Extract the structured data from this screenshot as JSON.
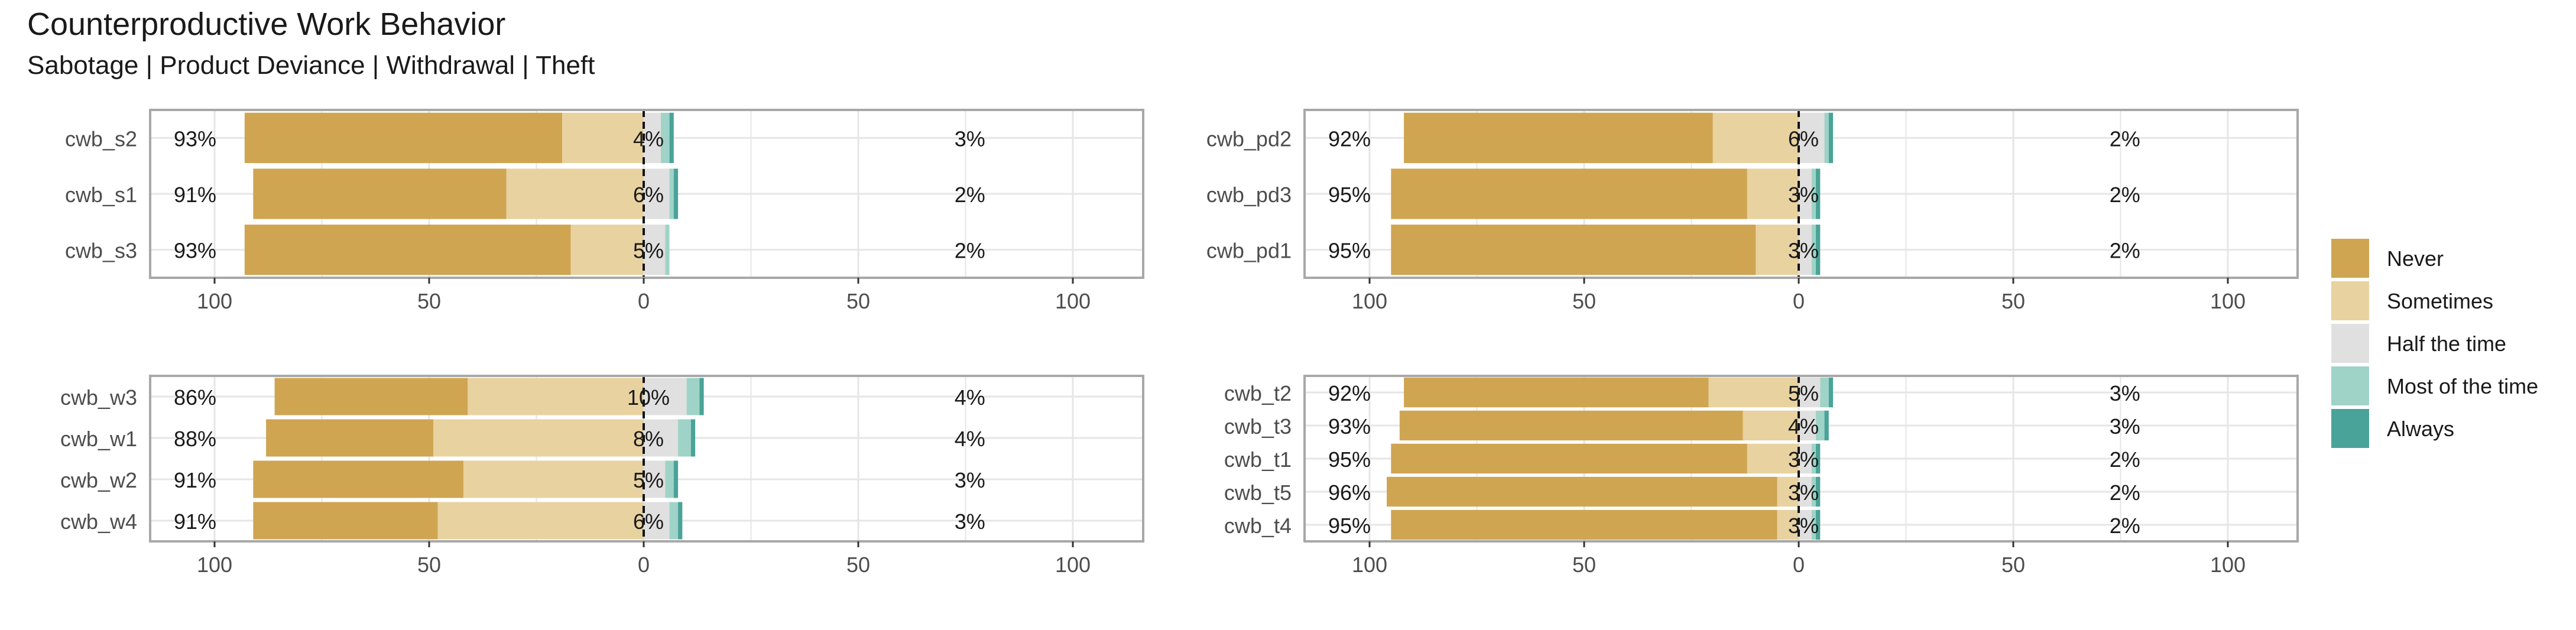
{
  "title": "Counterproductive Work Behavior",
  "subtitle": "Sabotage | Product Deviance | Withdrawal | Theft",
  "colors": {
    "Never": "#cfa552",
    "Sometimes": "#e8d2a0",
    "Half the time": "#e0e0e0",
    "Most of the time": "#9fd3c7",
    "Always": "#4aa398",
    "grid": "#e6e6e6",
    "border": "#a8a8a8",
    "text": "#1a1a1a",
    "axis_text": "#4d4d4d"
  },
  "legend": {
    "position": "right",
    "items": [
      "Never",
      "Sometimes",
      "Half the time",
      "Most of the time",
      "Always"
    ]
  },
  "chart_data": [
    {
      "type": "bar",
      "orientation": "horizontal-diverging",
      "panel": "top-left",
      "categories": [
        "cwb_s2",
        "cwb_s1",
        "cwb_s3"
      ],
      "series": [
        {
          "name": "Never",
          "values": [
            -74,
            -59,
            -76
          ]
        },
        {
          "name": "Sometimes",
          "values": [
            -19,
            -32,
            -17
          ]
        },
        {
          "name": "Half the time",
          "values": [
            4,
            6,
            5
          ]
        },
        {
          "name": "Most of the time",
          "values": [
            2,
            1,
            1
          ]
        },
        {
          "name": "Always",
          "values": [
            1,
            1,
            0
          ]
        }
      ],
      "left_labels": [
        "93%",
        "91%",
        "93%"
      ],
      "center_labels": [
        "4%",
        "6%",
        "5%"
      ],
      "right_labels": [
        "3%",
        "2%",
        "2%"
      ],
      "xticks": [
        "100",
        "50",
        "0",
        "50",
        "100"
      ],
      "xlim": [
        -100,
        100
      ],
      "grid": true
    },
    {
      "type": "bar",
      "orientation": "horizontal-diverging",
      "panel": "top-right",
      "categories": [
        "cwb_pd2",
        "cwb_pd3",
        "cwb_pd1"
      ],
      "series": [
        {
          "name": "Never",
          "values": [
            -72,
            -83,
            -85
          ]
        },
        {
          "name": "Sometimes",
          "values": [
            -20,
            -12,
            -10
          ]
        },
        {
          "name": "Half the time",
          "values": [
            6,
            3,
            3
          ]
        },
        {
          "name": "Most of the time",
          "values": [
            1,
            1,
            1
          ]
        },
        {
          "name": "Always",
          "values": [
            1,
            1,
            1
          ]
        }
      ],
      "left_labels": [
        "92%",
        "95%",
        "95%"
      ],
      "center_labels": [
        "6%",
        "3%",
        "3%"
      ],
      "right_labels": [
        "2%",
        "2%",
        "2%"
      ],
      "xticks": [
        "100",
        "50",
        "0",
        "50",
        "100"
      ],
      "xlim": [
        -100,
        100
      ],
      "grid": true
    },
    {
      "type": "bar",
      "orientation": "horizontal-diverging",
      "panel": "bottom-left",
      "categories": [
        "cwb_w3",
        "cwb_w1",
        "cwb_w2",
        "cwb_w4"
      ],
      "series": [
        {
          "name": "Never",
          "values": [
            -45,
            -39,
            -49,
            -43
          ]
        },
        {
          "name": "Sometimes",
          "values": [
            -41,
            -49,
            -42,
            -48
          ]
        },
        {
          "name": "Half the time",
          "values": [
            10,
            8,
            5,
            6
          ]
        },
        {
          "name": "Most of the time",
          "values": [
            3,
            3,
            2,
            2
          ]
        },
        {
          "name": "Always",
          "values": [
            1,
            1,
            1,
            1
          ]
        }
      ],
      "left_labels": [
        "86%",
        "88%",
        "91%",
        "91%"
      ],
      "center_labels": [
        "10%",
        "8%",
        "5%",
        "6%"
      ],
      "right_labels": [
        "4%",
        "4%",
        "3%",
        "3%"
      ],
      "xticks": [
        "100",
        "50",
        "0",
        "50",
        "100"
      ],
      "xlim": [
        -100,
        100
      ],
      "grid": true
    },
    {
      "type": "bar",
      "orientation": "horizontal-diverging",
      "panel": "bottom-right",
      "categories": [
        "cwb_t2",
        "cwb_t3",
        "cwb_t1",
        "cwb_t5",
        "cwb_t4"
      ],
      "series": [
        {
          "name": "Never",
          "values": [
            -71,
            -80,
            -83,
            -91,
            -90
          ]
        },
        {
          "name": "Sometimes",
          "values": [
            -21,
            -13,
            -12,
            -5,
            -5
          ]
        },
        {
          "name": "Half the time",
          "values": [
            5,
            4,
            3,
            3,
            3
          ]
        },
        {
          "name": "Most of the time",
          "values": [
            2,
            2,
            1,
            1,
            1
          ]
        },
        {
          "name": "Always",
          "values": [
            1,
            1,
            1,
            1,
            1
          ]
        }
      ],
      "left_labels": [
        "92%",
        "93%",
        "95%",
        "96%",
        "95%"
      ],
      "center_labels": [
        "5%",
        "4%",
        "3%",
        "3%",
        "3%"
      ],
      "right_labels": [
        "3%",
        "3%",
        "2%",
        "2%",
        "2%"
      ],
      "xticks": [
        "100",
        "50",
        "0",
        "50",
        "100"
      ],
      "xlim": [
        -100,
        100
      ],
      "grid": true
    }
  ]
}
